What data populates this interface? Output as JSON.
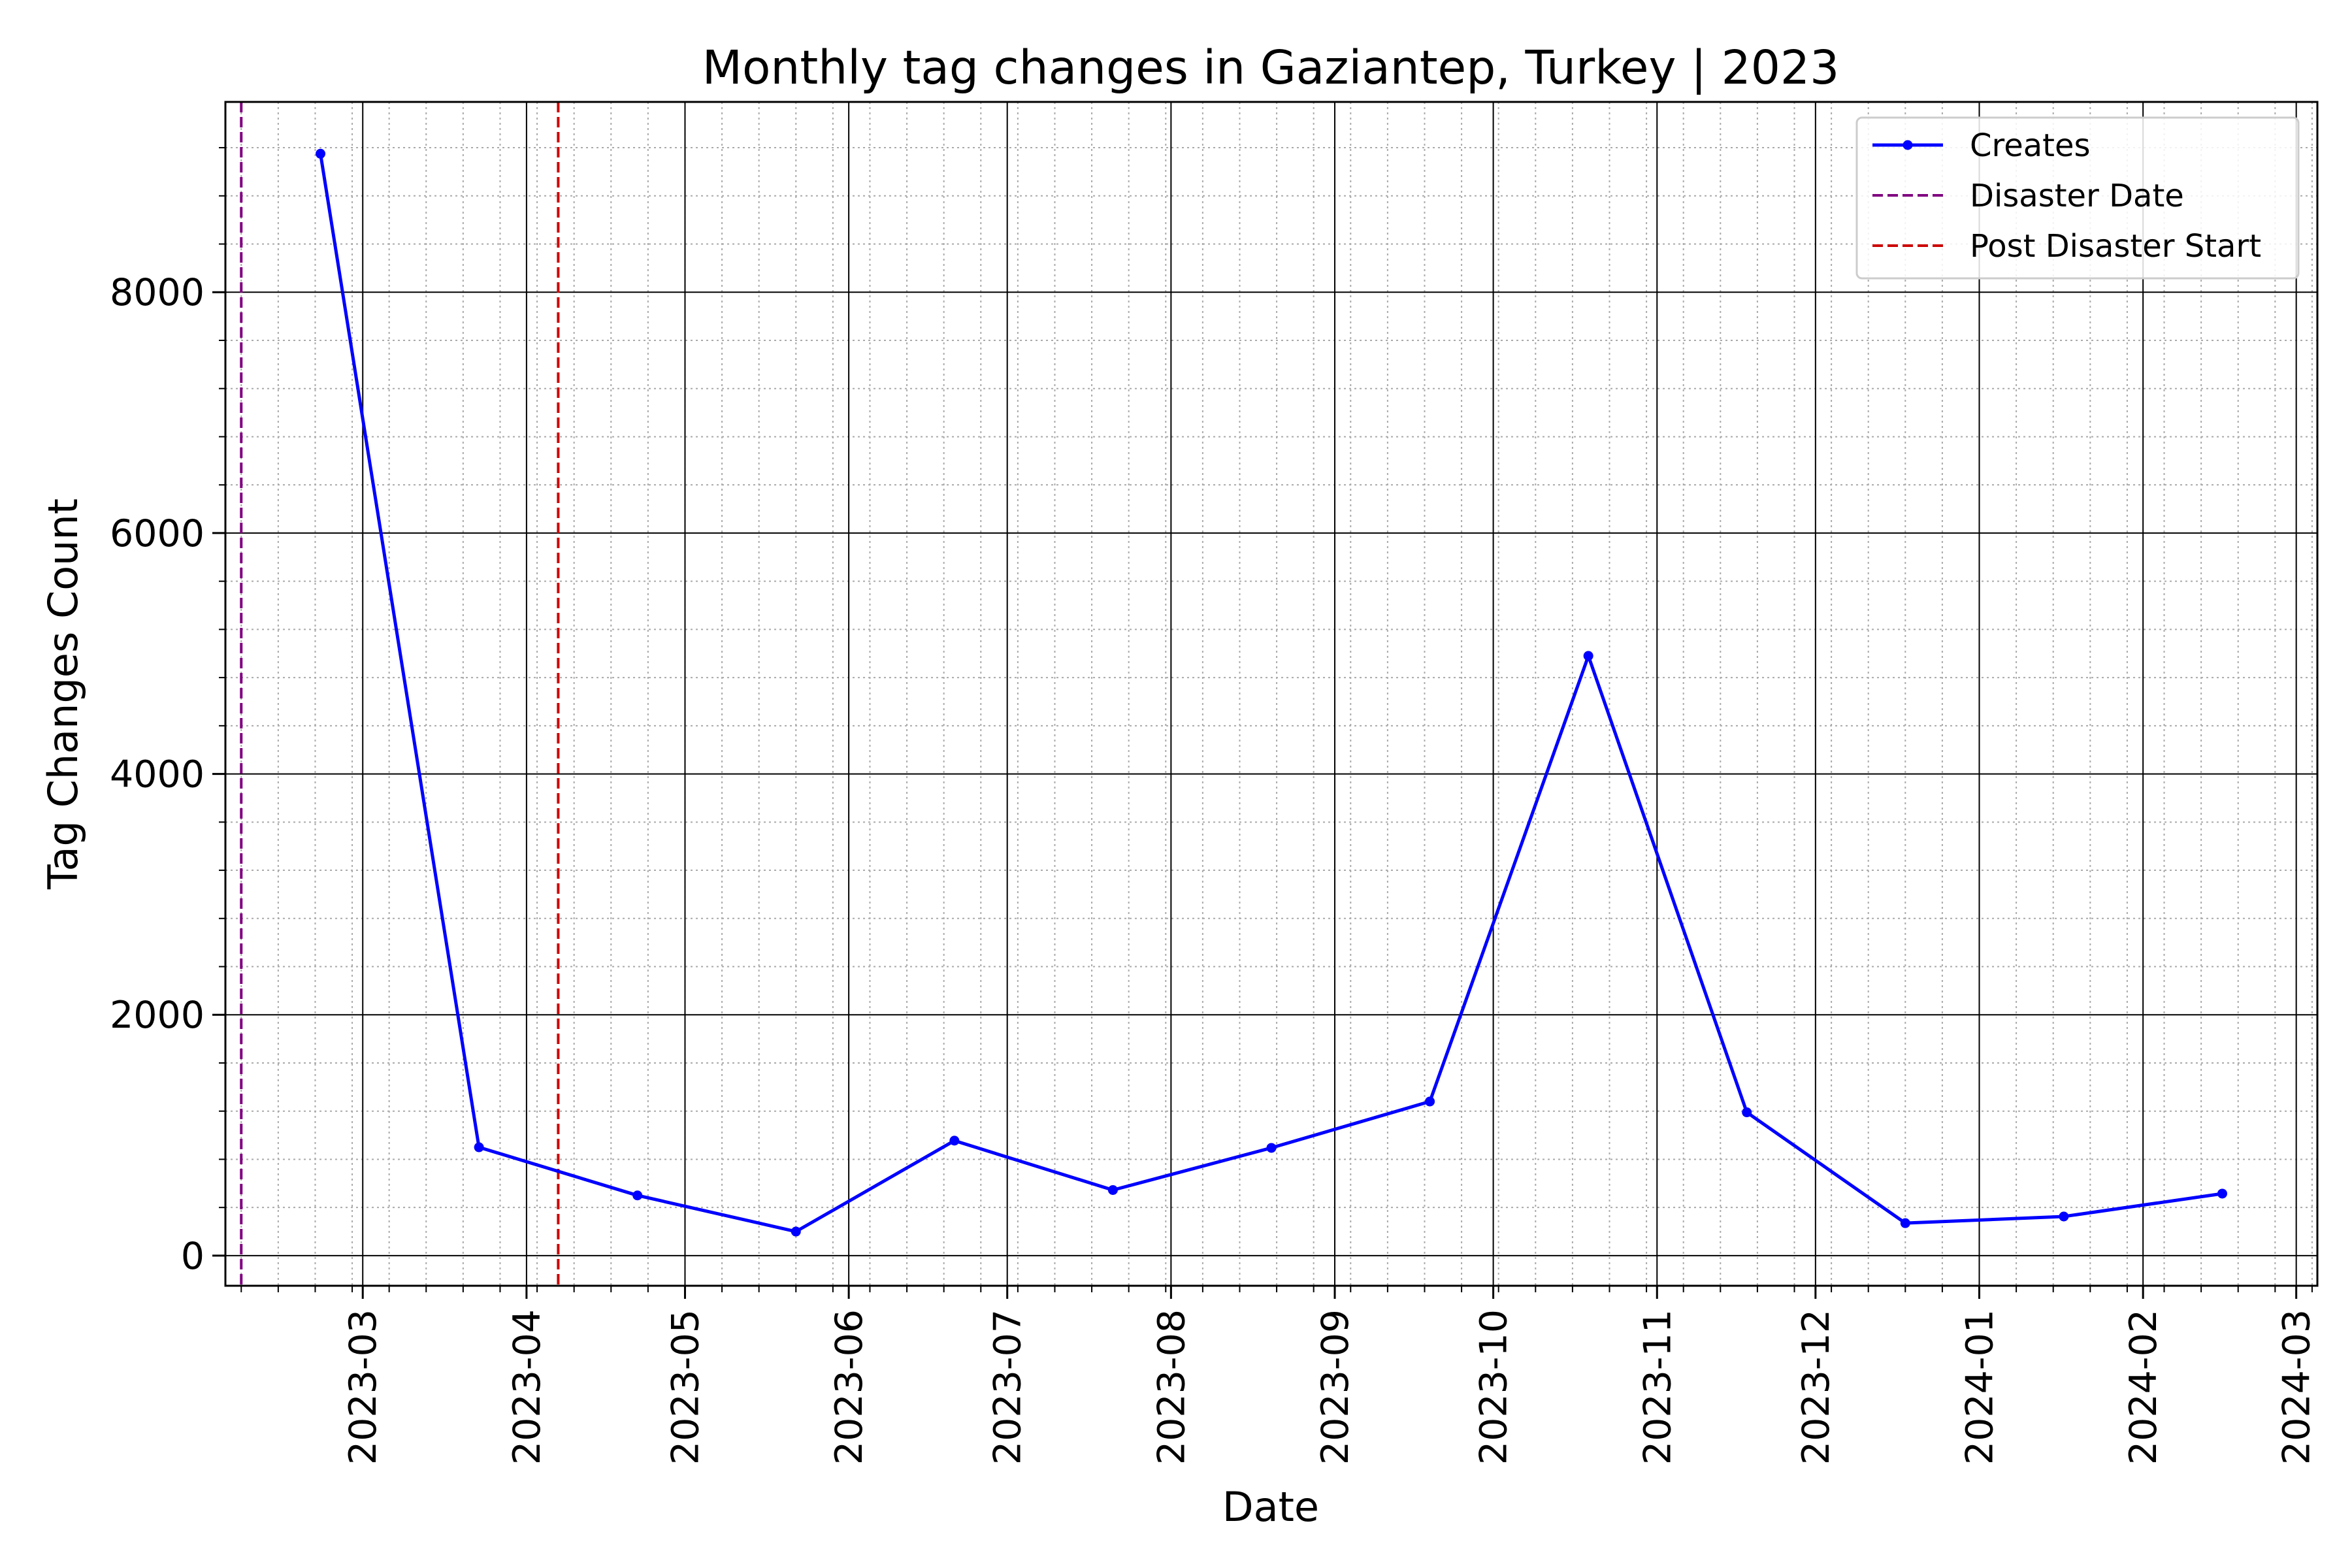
{
  "chart_data": {
    "type": "line",
    "title": "Monthly tag changes in Gaziantep, Turkey | 2023",
    "xlabel": "Date",
    "ylabel": "Tag Changes Count",
    "x_type": "date",
    "xlim": [
      "2023-02-03",
      "2024-03-05"
    ],
    "ylim": [
      -250,
      9580
    ],
    "x_ticks": [
      "2023-03",
      "2023-04",
      "2023-05",
      "2023-06",
      "2023-07",
      "2023-08",
      "2023-09",
      "2023-10",
      "2023-11",
      "2023-12",
      "2024-01",
      "2024-02",
      "2024-03"
    ],
    "x_tick_dates": [
      "2023-03-01",
      "2023-04-01",
      "2023-05-01",
      "2023-06-01",
      "2023-07-01",
      "2023-08-01",
      "2023-09-01",
      "2023-10-01",
      "2023-11-01",
      "2023-12-01",
      "2024-01-01",
      "2024-02-01",
      "2024-03-01"
    ],
    "y_ticks": [
      0,
      2000,
      4000,
      6000,
      8000
    ],
    "grid": "major and minor",
    "legend_position": "top-right",
    "series": [
      {
        "name": "Creates",
        "color": "#0000ff",
        "marker": "circle",
        "x": [
          "2023-02-21",
          "2023-03-23",
          "2023-04-22",
          "2023-05-22",
          "2023-06-21",
          "2023-07-21",
          "2023-08-20",
          "2023-09-19",
          "2023-10-19",
          "2023-11-18",
          "2023-12-18",
          "2024-01-17",
          "2024-02-16"
        ],
        "y": [
          9150,
          900,
          500,
          200,
          955,
          545,
          895,
          1280,
          4980,
          1190,
          270,
          325,
          515
        ]
      }
    ],
    "reference_lines": [
      {
        "name": "Disaster Date",
        "x": "2023-02-06",
        "color": "#800080",
        "style": "dashed"
      },
      {
        "name": "Post Disaster Start",
        "x": "2023-04-07",
        "color": "#cc0000",
        "style": "dashed"
      }
    ]
  }
}
